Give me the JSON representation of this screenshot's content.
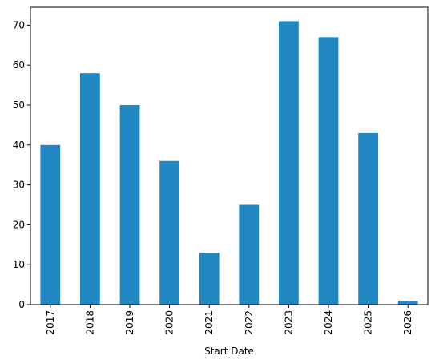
{
  "chart_data": {
    "type": "bar",
    "categories": [
      "2017",
      "2018",
      "2019",
      "2020",
      "2021",
      "2022",
      "2023",
      "2024",
      "2025",
      "2026"
    ],
    "values": [
      40,
      58,
      50,
      36,
      13,
      25,
      71,
      67,
      43,
      1
    ],
    "xlabel": "Start Date",
    "ylabel": "",
    "ylim": [
      0,
      74.5
    ],
    "yticks": [
      0,
      10,
      20,
      30,
      40,
      50,
      60,
      70
    ],
    "bar_color": "#2288c3",
    "grid": false,
    "legend": "none"
  }
}
